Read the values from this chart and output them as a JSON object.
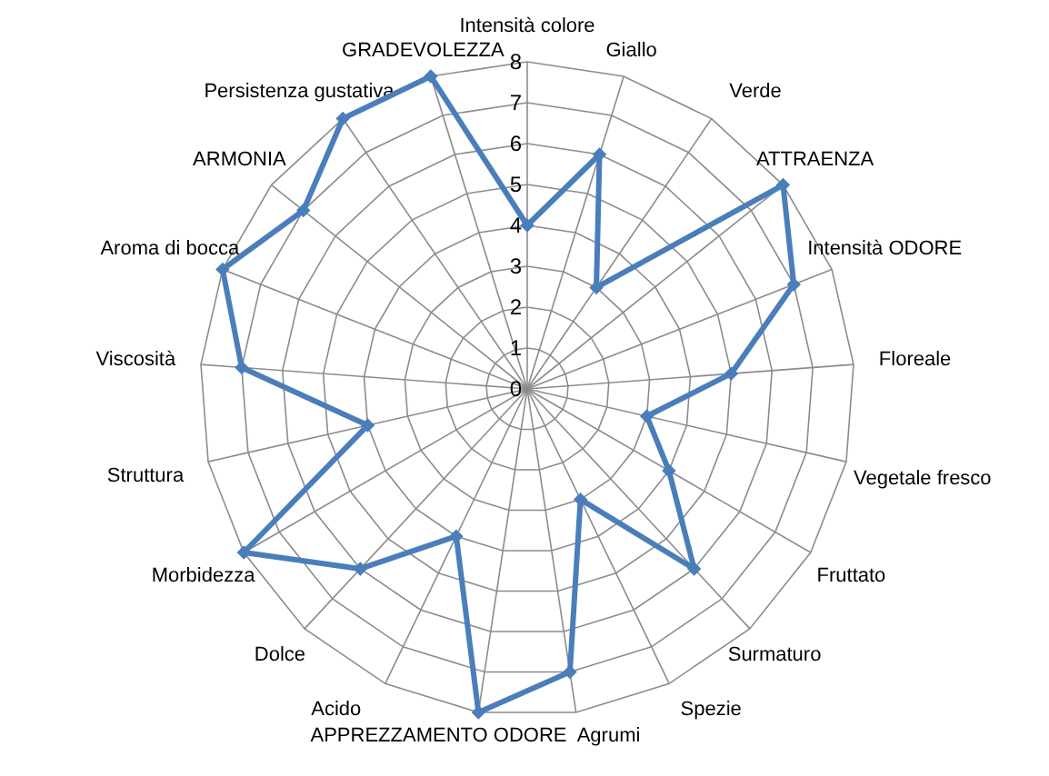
{
  "chart_data": {
    "type": "radar",
    "categories": [
      "Intensità colore",
      "Giallo",
      "Verde",
      "ATTRAENZA",
      "Intensità ODORE",
      "Floreale",
      "Vegetale fresco",
      "Fruttato",
      "Surmaturo",
      "Spezie",
      "Agrumi",
      "APPREZZAMENTO ODORE",
      "Acido",
      "Dolce",
      "Morbidezza",
      "Struttura",
      "Viscosità",
      "Aroma di bocca",
      "ARMONIA",
      "Persistenza gustativa",
      "GRADEVOLEZZA"
    ],
    "series": [
      {
        "color": "#4a7ebb",
        "values": [
          4,
          6,
          3,
          8,
          7,
          5,
          3,
          4,
          6,
          3,
          7,
          8,
          4,
          6,
          8,
          4,
          7,
          8,
          7,
          8,
          8
        ]
      }
    ],
    "ylim": [
      0,
      8
    ],
    "yticks": [
      0,
      1,
      2,
      3,
      4,
      5,
      6,
      7,
      8
    ],
    "grid": true,
    "marker": "diamond",
    "line_style": "solid"
  }
}
